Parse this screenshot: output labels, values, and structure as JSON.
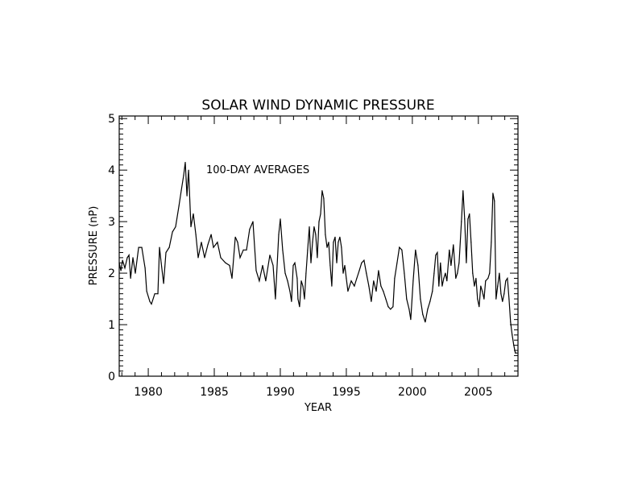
{
  "chart_data": {
    "type": "line",
    "title": "SOLAR WIND DYNAMIC PRESSURE",
    "xlabel": "YEAR",
    "ylabel": "PRESSURE (nP)",
    "annotation": "100-DAY AVERAGES",
    "xlim": [
      1977.8,
      2008.0
    ],
    "ylim": [
      0,
      5.05
    ],
    "xticks": [
      1980,
      1985,
      1990,
      1995,
      2000,
      2005
    ],
    "xtick_labels": [
      "1980",
      "1985",
      "1990",
      "1995",
      "2000",
      "2005"
    ],
    "xminor_step": 1,
    "yticks": [
      0,
      1,
      2,
      3,
      4,
      5
    ],
    "ytick_labels": [
      "0",
      "1",
      "2",
      "3",
      "4",
      "5"
    ],
    "yminor_step": 0.1,
    "grid": false,
    "line_color": "#000000",
    "series": [
      {
        "name": "100-day average",
        "x": [
          1977.8,
          1977.93,
          1978.05,
          1978.23,
          1978.41,
          1978.54,
          1978.66,
          1978.84,
          1979.02,
          1979.27,
          1979.51,
          1979.76,
          1979.88,
          1980.12,
          1980.24,
          1980.49,
          1980.73,
          1980.85,
          1980.98,
          1981.16,
          1981.34,
          1981.59,
          1981.83,
          1982.07,
          1982.32,
          1982.5,
          1982.68,
          1982.8,
          1982.93,
          1983.05,
          1983.23,
          1983.41,
          1983.6,
          1983.78,
          1984.02,
          1984.27,
          1984.51,
          1984.76,
          1984.94,
          1985.24,
          1985.49,
          1985.85,
          1986.16,
          1986.34,
          1986.59,
          1986.77,
          1986.95,
          1987.2,
          1987.44,
          1987.68,
          1987.93,
          1988.17,
          1988.41,
          1988.66,
          1988.9,
          1989.21,
          1989.45,
          1989.63,
          1989.88,
          1990.0,
          1990.18,
          1990.37,
          1990.55,
          1990.73,
          1990.85,
          1990.98,
          1991.1,
          1991.28,
          1991.34,
          1991.46,
          1991.59,
          1991.71,
          1991.83,
          1991.95,
          1992.07,
          1992.2,
          1992.32,
          1992.44,
          1992.56,
          1992.68,
          1992.8,
          1992.93,
          1993.05,
          1993.17,
          1993.29,
          1993.41,
          1993.54,
          1993.66,
          1993.78,
          1993.9,
          1994.02,
          1994.15,
          1994.27,
          1994.39,
          1994.51,
          1994.63,
          1994.76,
          1994.88,
          1995.0,
          1995.12,
          1995.37,
          1995.61,
          1995.79,
          1995.98,
          1996.16,
          1996.34,
          1996.52,
          1996.71,
          1996.89,
          1997.07,
          1997.26,
          1997.44,
          1997.62,
          1997.8,
          1997.99,
          1998.17,
          1998.35,
          1998.54,
          1998.66,
          1998.84,
          1999.02,
          1999.21,
          1999.39,
          1999.57,
          1999.76,
          1999.88,
          2000.06,
          2000.24,
          2000.43,
          2000.61,
          2000.79,
          2000.98,
          2001.16,
          2001.34,
          2001.52,
          2001.65,
          2001.77,
          2001.89,
          2002.01,
          2002.13,
          2002.26,
          2002.38,
          2002.5,
          2002.62,
          2002.8,
          2002.93,
          2003.11,
          2003.29,
          2003.41,
          2003.54,
          2003.72,
          2003.84,
          2003.96,
          2004.09,
          2004.21,
          2004.33,
          2004.45,
          2004.57,
          2004.7,
          2004.82,
          2004.94,
          2005.06,
          2005.18,
          2005.3,
          2005.43,
          2005.55,
          2005.73,
          2005.85,
          2005.98,
          2006.1,
          2006.22,
          2006.34,
          2006.46,
          2006.59,
          2006.71,
          2006.83,
          2006.95,
          2007.07,
          2007.2,
          2007.32,
          2007.44,
          2007.56,
          2007.68,
          2007.8,
          2007.93
        ],
        "values": [
          2.2,
          2.05,
          2.25,
          2.1,
          2.3,
          2.35,
          1.9,
          2.3,
          2.0,
          2.5,
          2.5,
          2.1,
          1.65,
          1.45,
          1.4,
          1.6,
          1.6,
          2.5,
          2.2,
          1.8,
          2.4,
          2.5,
          2.8,
          2.9,
          3.3,
          3.6,
          3.9,
          4.15,
          3.5,
          4.0,
          2.9,
          3.15,
          2.75,
          2.3,
          2.6,
          2.3,
          2.55,
          2.75,
          2.5,
          2.6,
          2.3,
          2.2,
          2.15,
          1.9,
          2.7,
          2.6,
          2.3,
          2.45,
          2.45,
          2.85,
          3.0,
          2.05,
          1.85,
          2.15,
          1.85,
          2.35,
          2.15,
          1.5,
          2.75,
          3.05,
          2.45,
          2.0,
          1.85,
          1.65,
          1.45,
          2.15,
          2.2,
          1.9,
          1.5,
          1.35,
          1.85,
          1.75,
          1.5,
          2.0,
          2.45,
          2.9,
          2.2,
          2.6,
          2.9,
          2.75,
          2.3,
          3.0,
          3.15,
          3.6,
          3.45,
          2.75,
          2.5,
          2.6,
          2.15,
          1.75,
          2.6,
          2.7,
          2.2,
          2.6,
          2.7,
          2.5,
          2.0,
          2.15,
          1.9,
          1.65,
          1.85,
          1.75,
          1.9,
          2.05,
          2.2,
          2.25,
          2.0,
          1.75,
          1.45,
          1.85,
          1.65,
          2.05,
          1.75,
          1.65,
          1.5,
          1.35,
          1.3,
          1.35,
          1.9,
          2.2,
          2.5,
          2.45,
          2.0,
          1.5,
          1.3,
          1.1,
          1.85,
          2.45,
          2.15,
          1.5,
          1.2,
          1.05,
          1.3,
          1.45,
          1.65,
          2.0,
          2.35,
          2.4,
          1.75,
          2.2,
          1.75,
          1.9,
          2.0,
          1.85,
          2.45,
          2.15,
          2.55,
          1.9,
          2.0,
          2.2,
          3.0,
          3.6,
          3.05,
          2.2,
          3.05,
          3.15,
          2.6,
          2.0,
          1.75,
          1.9,
          1.5,
          1.35,
          1.75,
          1.65,
          1.5,
          1.85,
          1.9,
          2.0,
          2.6,
          3.55,
          3.4,
          1.5,
          1.75,
          2.0,
          1.6,
          1.45,
          1.6,
          1.85,
          1.9,
          1.5,
          1.05,
          0.8,
          0.6,
          0.45,
          0.45
        ]
      }
    ]
  }
}
